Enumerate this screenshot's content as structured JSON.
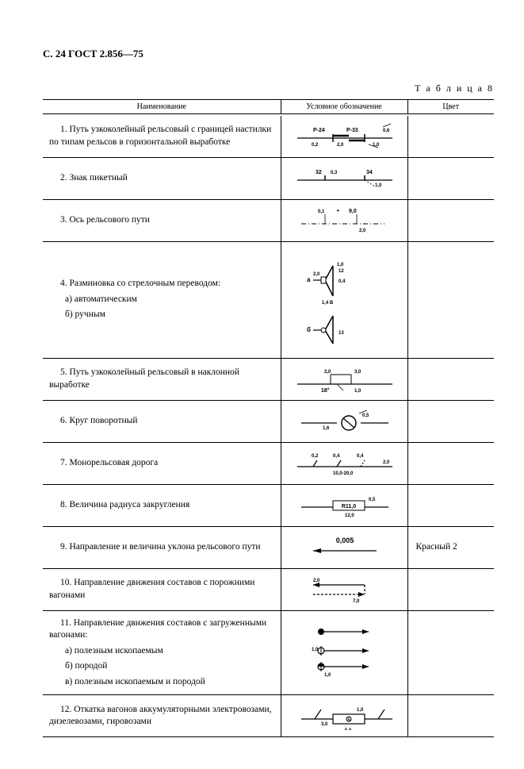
{
  "page_header": "С. 24 ГОСТ 2.856—75",
  "table_title": "Т а б л и ц а  8",
  "columns": {
    "name": "Наименование",
    "symbol": "Условное обозначение",
    "color": "Цвет"
  },
  "stroke": "#000000",
  "bg": "#ffffff",
  "rows": [
    {
      "name": "1. Путь узкоколейный рельсовый с границей настилки по типам рельсов в горизонтальной выработке",
      "color": "",
      "sym": {
        "type": "rail_boundary",
        "labels": [
          "Р-24",
          "Р-33",
          "0,6",
          "0,2",
          "2,0",
          "1,0"
        ]
      }
    },
    {
      "name": "2. Знак пикетный",
      "color": "",
      "sym": {
        "type": "picket",
        "labels": [
          "32",
          "0,3",
          "34",
          "1,0"
        ]
      }
    },
    {
      "name": "3. Ось рельсового пути",
      "color": "",
      "sym": {
        "type": "axis",
        "labels": [
          "0,1",
          "9,0",
          "2,0"
        ]
      }
    },
    {
      "name_multi": [
        "4. Разминовка со стрелочным переводом:",
        "а) автоматическим",
        "б) ручным"
      ],
      "color": "",
      "sym": {
        "type": "switch",
        "labels": [
          "а",
          "б",
          "1,0",
          "0,4",
          "12",
          "13",
          "1,4 В",
          "2,0",
          "0,4"
        ],
        "height": 130
      }
    },
    {
      "name": "5. Путь узкоколейный рельсовый в наклонной выработке",
      "color": "",
      "sym": {
        "type": "incline",
        "labels": [
          "2,0",
          "3,0",
          "18°",
          "1,0"
        ]
      }
    },
    {
      "name": "6. Круг поворотный",
      "color": "",
      "sym": {
        "type": "turntable",
        "labels": [
          "1,6",
          "0,5"
        ]
      }
    },
    {
      "name": "7. Монорельсовая дорога",
      "color": "",
      "sym": {
        "type": "monorail",
        "labels": [
          "0,2",
          "0,4",
          "0,4",
          "2,0",
          "10,0-20,0"
        ]
      }
    },
    {
      "name": "8. Величина радиуса закругления",
      "color": "",
      "sym": {
        "type": "radius",
        "labels": [
          "R11,0",
          "0,5",
          "12,0"
        ]
      }
    },
    {
      "name": "9. Направление и величина уклона рельсового пути",
      "color": "Красный 2",
      "sym": {
        "type": "slope",
        "labels": [
          "0,005"
        ]
      }
    },
    {
      "name": "10. Направление движения составов с порожними вагонами",
      "color": "",
      "sym": {
        "type": "empty_dir",
        "labels": [
          "2,0",
          "7,0"
        ]
      }
    },
    {
      "name_multi": [
        "11. Направление движения составов с загруженными вагонами:",
        "а) полезным ископаемым",
        "б) породой",
        "в) полезным ископаемым и породой"
      ],
      "color": "",
      "sym": {
        "type": "loaded_dir",
        "labels": [
          "1,0",
          "1,0"
        ],
        "height": 80
      }
    },
    {
      "name": "12. Откатка вагонов аккумуляторными электровозами, дизелевозами, гировозами",
      "color": "",
      "sym": {
        "type": "haulage",
        "labels": [
          "1,0",
          "3,0",
          "5",
          "5,0"
        ]
      }
    }
  ]
}
